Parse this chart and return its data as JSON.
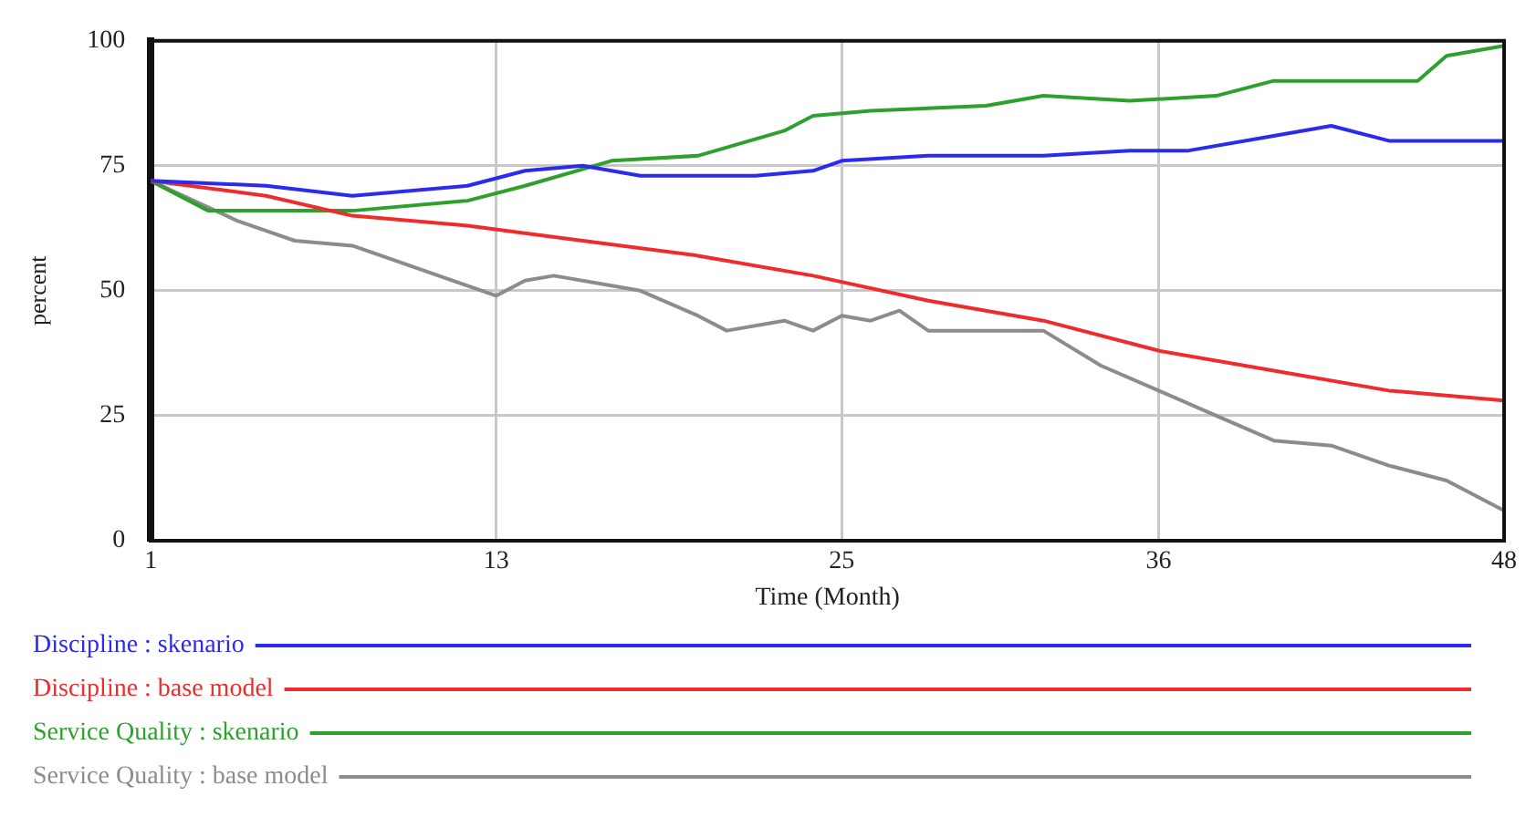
{
  "chart_data": {
    "type": "line",
    "xlabel": "Time (Month)",
    "ylabel": "percent",
    "xlim": [
      1,
      48
    ],
    "xticks": [
      1,
      13,
      25,
      36,
      48
    ],
    "ylim": [
      0,
      100
    ],
    "yticks": [
      0,
      25,
      50,
      75,
      100
    ],
    "grid": true,
    "legend": "bottom",
    "marker": "none",
    "line_style": "solid",
    "series": [
      {
        "name": "Discipline : skenario",
        "color": "#2b2bf0",
        "x": [
          1,
          5,
          8,
          12,
          14,
          16,
          18,
          22,
          24,
          25,
          28,
          32,
          35,
          37,
          40,
          42,
          44,
          46,
          48
        ],
        "values": [
          72,
          71,
          69,
          71,
          74,
          75,
          73,
          73,
          74,
          76,
          77,
          77,
          78,
          78,
          81,
          83,
          80,
          80,
          80
        ]
      },
      {
        "name": "Discipline : base model",
        "color": "#f02b2b",
        "x": [
          1,
          5,
          8,
          12,
          16,
          20,
          24,
          28,
          32,
          36,
          40,
          44,
          48
        ],
        "values": [
          72,
          69,
          65,
          63,
          60,
          57,
          53,
          48,
          44,
          38,
          34,
          30,
          28
        ]
      },
      {
        "name": "Service Quality : skenario",
        "color": "#2ea02e",
        "x": [
          1,
          3,
          8,
          12,
          14,
          17,
          20,
          23,
          24,
          26,
          30,
          32,
          35,
          38,
          40,
          45,
          46,
          48
        ],
        "values": [
          72,
          66,
          66,
          68,
          71,
          76,
          77,
          82,
          85,
          86,
          87,
          89,
          88,
          89,
          92,
          92,
          97,
          99
        ]
      },
      {
        "name": "Service Quality : base model",
        "color": "#8c8c8c",
        "x": [
          1,
          4,
          6,
          8,
          10,
          12,
          13,
          14,
          15,
          17,
          18,
          20,
          21,
          23,
          24,
          25,
          26,
          27,
          28,
          30,
          32,
          34,
          36,
          38,
          40,
          42,
          44,
          46,
          48
        ],
        "values": [
          72,
          64,
          60,
          59,
          55,
          51,
          49,
          52,
          53,
          51,
          50,
          45,
          42,
          44,
          42,
          45,
          44,
          46,
          42,
          42,
          42,
          35,
          30,
          25,
          20,
          19,
          15,
          12,
          6
        ]
      }
    ]
  }
}
